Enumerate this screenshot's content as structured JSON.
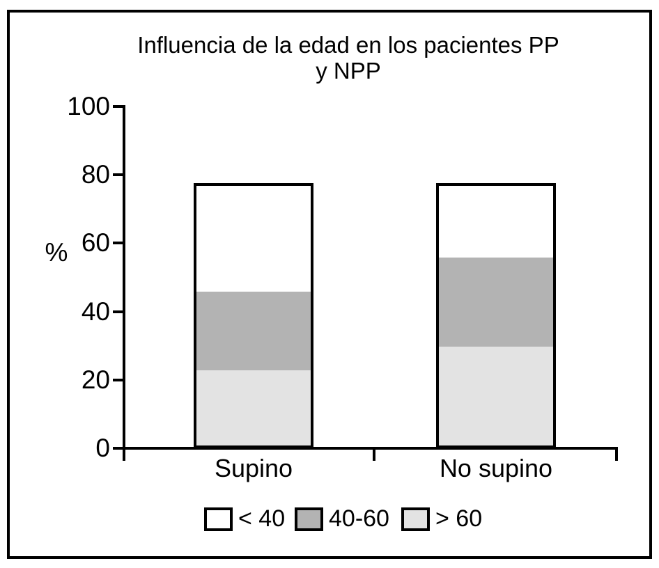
{
  "chart_data": {
    "type": "bar",
    "stacked": true,
    "title_lines": [
      "Influencia de la edad en los pacientes PP",
      "y NPP"
    ],
    "ylabel": "%",
    "ylim": [
      0,
      100
    ],
    "yticks": [
      0,
      20,
      40,
      60,
      80,
      100
    ],
    "categories": [
      "Supino",
      "No supino"
    ],
    "series": [
      {
        "name": "> 60",
        "color": "#e3e3e3",
        "values": [
          22,
          29
        ]
      },
      {
        "name": "40-60",
        "color": "#b3b3b3",
        "values": [
          23,
          26
        ]
      },
      {
        "name": "< 40",
        "color": "#ffffff",
        "values": [
          32.5,
          22.5
        ]
      }
    ],
    "bar_totals": [
      77.5,
      77.5
    ],
    "legend": [
      {
        "label": "< 40",
        "color": "#ffffff"
      },
      {
        "label": "40-60",
        "color": "#b3b3b3"
      },
      {
        "label": "> 60",
        "color": "#e3e3e3"
      }
    ],
    "legend_position": "bottom",
    "grid": false,
    "axis_color": "#000000",
    "bar_outline_color": "#000000"
  }
}
